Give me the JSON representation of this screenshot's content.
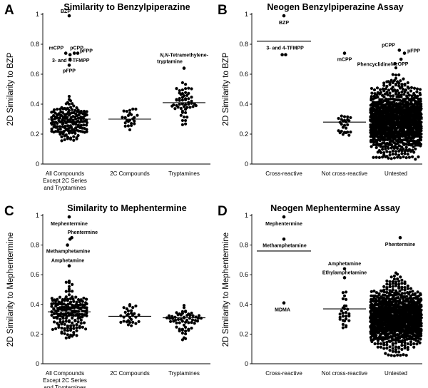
{
  "chart_data": [
    {
      "id": "A",
      "letter": "A",
      "type": "scatter",
      "title": "Similarity to Benzylpiperazine",
      "ylabel": "2D Similarity to BZP",
      "ylim": [
        0,
        1
      ],
      "yticks": [
        0,
        0.2,
        0.4,
        0.6,
        0.8,
        1
      ],
      "ytick_labels": [
        "0",
        "0.2",
        "0.4",
        "0.6",
        "0.8",
        "1"
      ],
      "categories": [
        {
          "label_lines": [
            "All Compounds",
            "Except 2C Series",
            "and Tryptamines"
          ],
          "n": 170,
          "center": 0.28,
          "sd": 0.07,
          "min": 0.15,
          "max": 0.52,
          "mean": 0.3
        },
        {
          "label_lines": [
            "2C Compounds"
          ],
          "n": 24,
          "center": 0.3,
          "sd": 0.04,
          "min": 0.21,
          "max": 0.38,
          "mean": 0.3
        },
        {
          "label_lines": [
            "Tryptamines"
          ],
          "n": 55,
          "center": 0.41,
          "sd": 0.06,
          "min": 0.26,
          "max": 0.56,
          "mean": 0.41
        }
      ],
      "highlight_points": [
        {
          "cat": 0,
          "dx": 0.0,
          "y": 0.99,
          "label": "BZP",
          "italic_prefix": ""
        },
        {
          "cat": 0,
          "dx": -0.08,
          "y": 0.74,
          "label": "mCPP",
          "italic_prefix": ""
        },
        {
          "cat": 0,
          "dx": 0.02,
          "y": 0.73,
          "label": "",
          "italic_prefix": ""
        },
        {
          "cat": 0,
          "dx": 0.12,
          "y": 0.74,
          "label": "pCPP",
          "italic_prefix": ""
        },
        {
          "cat": 0,
          "dx": 0.2,
          "y": 0.74,
          "label": "pFPP",
          "italic_prefix": ""
        },
        {
          "cat": 0,
          "dx": 0.02,
          "y": 0.7,
          "label": "3- and 4-TFMPP",
          "italic_prefix": ""
        },
        {
          "cat": 0,
          "dx": 0.0,
          "y": 0.66,
          "label": "pFPP",
          "italic_prefix": ""
        },
        {
          "cat": 2,
          "dx": 0.0,
          "y": 0.64,
          "label": "-Tetramethylene-tryptamine",
          "italic_prefix": "N,N"
        }
      ],
      "annotations": [
        "BZP",
        "mCPP",
        "pCPP",
        "pFPP",
        "3- and 4-TFMPP",
        "pFPP",
        "N,N-Tetramethylene-",
        "tryptamine"
      ]
    },
    {
      "id": "B",
      "letter": "B",
      "type": "scatter",
      "title": "Neogen Benzylpiperazine Assay",
      "ylabel": "2D Similarity to BZP",
      "ylim": [
        0,
        1
      ],
      "yticks": [
        0,
        0.2,
        0.4,
        0.6,
        0.8,
        1
      ],
      "ytick_labels": [
        "0",
        "0.2",
        "0.4",
        "0.6",
        "0.8",
        "1"
      ],
      "categories": [
        {
          "label_lines": [
            "Cross-reactive"
          ],
          "n": 0,
          "center": 0,
          "sd": 0,
          "min": 0,
          "max": 0,
          "mean": 0.82
        },
        {
          "label_lines": [
            "Not cross-reactive"
          ],
          "n": 26,
          "center": 0.27,
          "sd": 0.06,
          "min": 0.15,
          "max": 0.41,
          "mean": 0.28
        },
        {
          "label_lines": [
            "Untested"
          ],
          "n": 1100,
          "center": 0.29,
          "sd": 0.11,
          "min": 0.03,
          "max": 0.68,
          "mean": 0.3
        }
      ],
      "highlight_points": [
        {
          "cat": 0,
          "dx": 0.0,
          "y": 0.99,
          "label": "BZP",
          "italic_prefix": ""
        },
        {
          "cat": 0,
          "dx": -0.04,
          "y": 0.73,
          "label": "3- and 4-TFMPP",
          "italic_prefix": ""
        },
        {
          "cat": 0,
          "dx": 0.04,
          "y": 0.73,
          "label": "",
          "italic_prefix": ""
        },
        {
          "cat": 1,
          "dx": 0.0,
          "y": 0.74,
          "label": "mCPP",
          "italic_prefix": ""
        },
        {
          "cat": 2,
          "dx": 0.08,
          "y": 0.76,
          "label": "pCPP",
          "italic_prefix": ""
        },
        {
          "cat": 2,
          "dx": 0.2,
          "y": 0.74,
          "label": "pFPP",
          "italic_prefix": ""
        },
        {
          "cat": 2,
          "dx": 0.12,
          "y": 0.7,
          "label": "MeOPP",
          "italic_prefix": ""
        },
        {
          "cat": 2,
          "dx": -0.02,
          "y": 0.67,
          "label": "Phencyclidine",
          "italic_prefix": ""
        }
      ],
      "annotations": [
        "BZP",
        "3- and 4-TFMPP",
        "mCPP",
        "pCPP",
        "pFPP",
        "MeOPP",
        "Phencyclidine"
      ]
    },
    {
      "id": "C",
      "letter": "C",
      "type": "scatter",
      "title": "Similarity to Mephentermine",
      "ylabel": "2D Similarity to Mephentermine",
      "ylim": [
        0,
        1
      ],
      "yticks": [
        0,
        0.2,
        0.4,
        0.6,
        0.8,
        1
      ],
      "ytick_labels": [
        "0",
        "0.2",
        "0.4",
        "0.6",
        "0.8",
        "1"
      ],
      "categories": [
        {
          "label_lines": [
            "All Compounds",
            "Except 2C Series",
            "and Tryptamines"
          ],
          "n": 180,
          "center": 0.34,
          "sd": 0.08,
          "min": 0.17,
          "max": 0.64,
          "mean": 0.35
        },
        {
          "label_lines": [
            "2C Compounds"
          ],
          "n": 30,
          "center": 0.32,
          "sd": 0.035,
          "min": 0.24,
          "max": 0.4,
          "mean": 0.32
        },
        {
          "label_lines": [
            "Tryptamines"
          ],
          "n": 60,
          "center": 0.3,
          "sd": 0.06,
          "min": 0.16,
          "max": 0.5,
          "mean": 0.31
        }
      ],
      "highlight_points": [
        {
          "cat": 0,
          "dx": 0.0,
          "y": 0.99,
          "label": "Mephentermine",
          "italic_prefix": ""
        },
        {
          "cat": 0,
          "dx": 0.02,
          "y": 0.84,
          "label": "",
          "italic_prefix": ""
        },
        {
          "cat": 0,
          "dx": 0.06,
          "y": 0.85,
          "label": "Phentermine",
          "italic_prefix": ""
        },
        {
          "cat": 0,
          "dx": -0.04,
          "y": 0.8,
          "label": "Methamphetamine",
          "italic_prefix": ""
        },
        {
          "cat": 0,
          "dx": 0.0,
          "y": 0.66,
          "label": "Amphetamine",
          "italic_prefix": ""
        }
      ],
      "annotations": [
        "Mephentermine",
        "Phentermine",
        "Methamphetamine",
        "Amphetamine"
      ]
    },
    {
      "id": "D",
      "letter": "D",
      "type": "scatter",
      "title": "Neogen Mephentermine Assay",
      "ylabel": "2D Similarity to Mephentermine",
      "ylim": [
        0,
        1
      ],
      "yticks": [
        0,
        0.2,
        0.4,
        0.6,
        0.8,
        1
      ],
      "ytick_labels": [
        "0",
        "0.2",
        "0.4",
        "0.6",
        "0.8",
        "1"
      ],
      "categories": [
        {
          "label_lines": [
            "Cross-reactive"
          ],
          "n": 0,
          "center": 0,
          "sd": 0,
          "min": 0,
          "max": 0,
          "mean": 0.76
        },
        {
          "label_lines": [
            "Not cross-reactive"
          ],
          "n": 28,
          "center": 0.35,
          "sd": 0.07,
          "min": 0.19,
          "max": 0.5,
          "mean": 0.37
        },
        {
          "label_lines": [
            "Untested"
          ],
          "n": 1100,
          "center": 0.31,
          "sd": 0.1,
          "min": 0.05,
          "max": 0.63,
          "mean": 0.31
        }
      ],
      "highlight_points": [
        {
          "cat": 0,
          "dx": 0.0,
          "y": 0.99,
          "label": "Mephentermine",
          "italic_prefix": ""
        },
        {
          "cat": 0,
          "dx": 0.0,
          "y": 0.84,
          "label": "Methamphetamine",
          "italic_prefix": ""
        },
        {
          "cat": 0,
          "dx": 0.0,
          "y": 0.41,
          "label": "MDMA",
          "italic_prefix": ""
        },
        {
          "cat": 1,
          "dx": 0.0,
          "y": 0.64,
          "label": "Amphetamine",
          "italic_prefix": ""
        },
        {
          "cat": 1,
          "dx": 0.0,
          "y": 0.58,
          "label": "Ethylamphetamine",
          "italic_prefix": ""
        },
        {
          "cat": 2,
          "dx": 0.1,
          "y": 0.85,
          "label": "Phentermine",
          "italic_prefix": ""
        }
      ],
      "annotations": [
        "Mephentermine",
        "Methamphetamine",
        "MDMA",
        "Amphetamine",
        "Ethylamphetamine",
        "Phentermine"
      ]
    }
  ]
}
